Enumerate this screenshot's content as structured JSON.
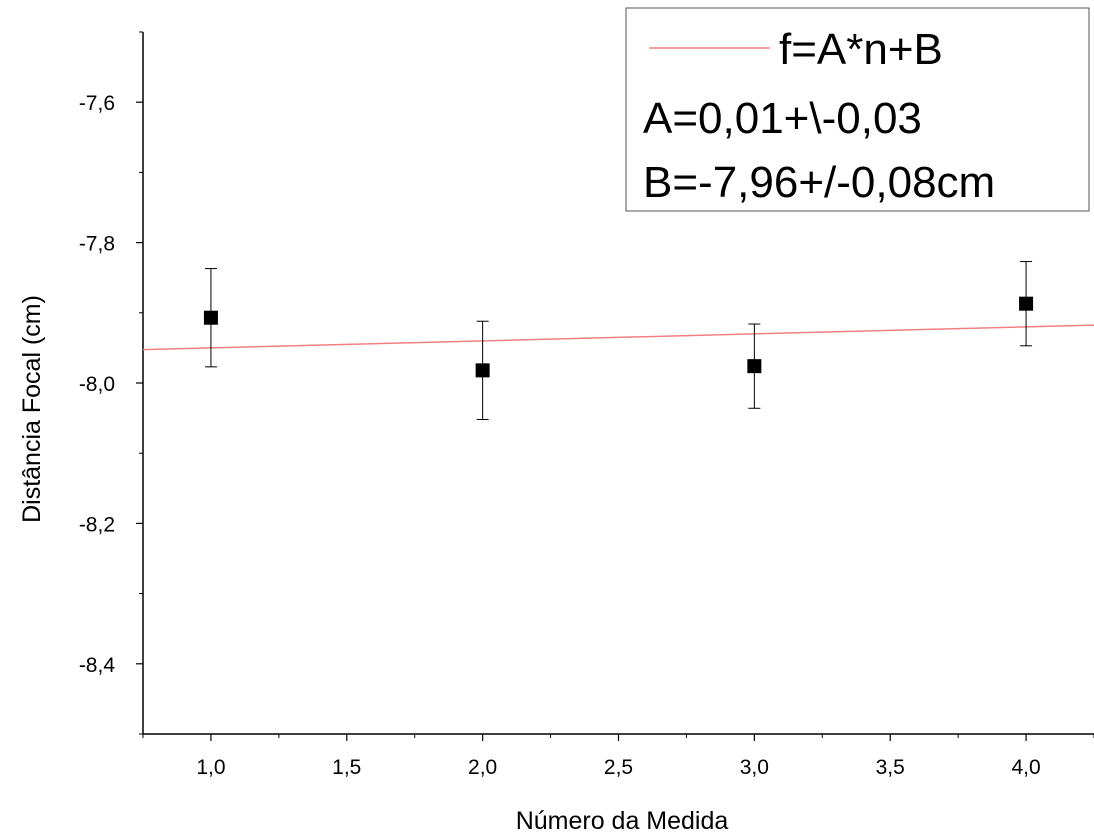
{
  "chart_data": {
    "type": "scatter",
    "xlabel": "Número da Medida",
    "ylabel": "Distância Focal (cm)",
    "xlim": [
      0.75,
      4.25
    ],
    "ylim": [
      -8.5,
      -7.5
    ],
    "x_ticks": [
      1.0,
      1.5,
      2.0,
      2.5,
      3.0,
      3.5,
      4.0
    ],
    "x_tick_labels": [
      "1,0",
      "1,5",
      "2,0",
      "2,5",
      "3,0",
      "3,5",
      "4,0"
    ],
    "y_ticks": [
      -7.6,
      -7.8,
      -8.0,
      -8.2,
      -8.4
    ],
    "y_tick_labels": [
      "-7,6",
      "-7,8",
      "-8,0",
      "-8,2",
      "-8,4"
    ],
    "grid": false,
    "series": [
      {
        "type": "scatter",
        "color": "#000000",
        "marker": "square",
        "x": [
          1,
          2,
          3,
          4
        ],
        "y": [
          -7.907,
          -7.982,
          -7.976,
          -7.887
        ],
        "yerr": [
          0.07,
          0.07,
          0.06,
          0.06
        ]
      },
      {
        "type": "line",
        "name": "f=A*n+B",
        "color": "#f08080",
        "slope": 0.01,
        "intercept": -7.96
      }
    ],
    "legend": {
      "placement": "top-right",
      "entries": [
        "f=A*n+B",
        "A=0,01+\\-0,03",
        "B=-7,96+/-0,08cm"
      ]
    }
  }
}
